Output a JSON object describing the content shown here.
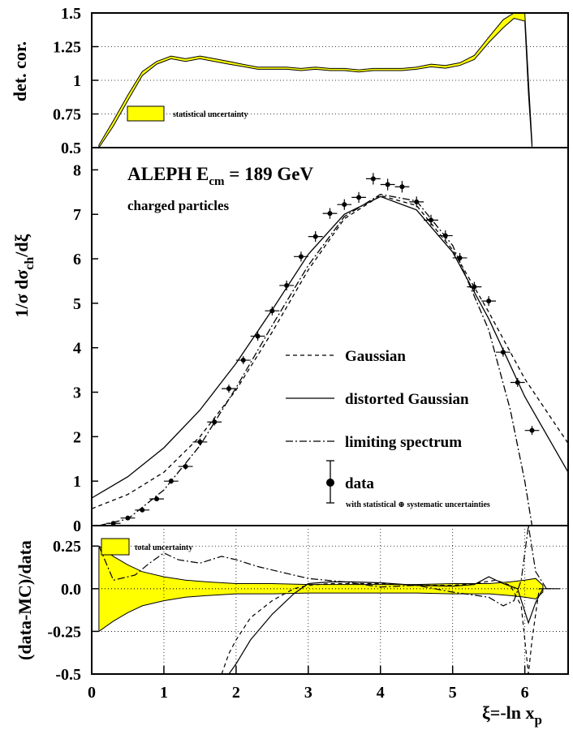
{
  "chart_data": [
    {
      "type": "line",
      "ylabel": "det. cor.",
      "xlim": [
        0,
        6.6
      ],
      "ylim": [
        0.5,
        1.5
      ],
      "yticks": [
        "0.5",
        "0.75",
        "1",
        "1.25",
        "1.5"
      ],
      "legend_label": "statistical uncertainty",
      "band_color": "#ffff00",
      "series": [
        {
          "x": [
            0.1,
            0.3,
            0.5,
            0.7,
            0.9,
            1.1,
            1.3,
            1.5,
            1.7,
            1.9,
            2.1,
            2.3,
            2.5,
            2.7,
            2.9,
            3.1,
            3.3,
            3.5,
            3.7,
            3.9,
            4.1,
            4.3,
            4.5,
            4.7,
            4.9,
            5.1,
            5.3,
            5.5,
            5.7,
            5.85,
            6.0,
            6.05,
            6.1
          ],
          "values": [
            0.5,
            0.68,
            0.87,
            1.05,
            1.13,
            1.17,
            1.15,
            1.17,
            1.15,
            1.13,
            1.11,
            1.09,
            1.09,
            1.09,
            1.08,
            1.09,
            1.08,
            1.08,
            1.07,
            1.08,
            1.08,
            1.08,
            1.09,
            1.11,
            1.1,
            1.12,
            1.17,
            1.3,
            1.42,
            1.5,
            1.5,
            0.95,
            0.5
          ],
          "err": [
            0.02,
            0.02,
            0.02,
            0.015,
            0.01,
            0.01,
            0.01,
            0.01,
            0.01,
            0.01,
            0.008,
            0.008,
            0.008,
            0.008,
            0.008,
            0.008,
            0.008,
            0.008,
            0.008,
            0.008,
            0.008,
            0.008,
            0.008,
            0.01,
            0.01,
            0.01,
            0.015,
            0.02,
            0.03,
            0.04,
            0.06,
            0.05,
            0.04
          ]
        }
      ]
    },
    {
      "type": "line",
      "title": "ALEPH  E",
      "title_sub": "cm",
      "title_suffix": " = 189 GeV",
      "subtitle": "charged particles",
      "ylabel_parts": [
        "1/σ dσ",
        "ch",
        "/dξ"
      ],
      "xlim": [
        0,
        6.6
      ],
      "ylim": [
        0,
        8.5
      ],
      "yticks": [
        "0",
        "1",
        "2",
        "3",
        "4",
        "5",
        "6",
        "7",
        "8"
      ],
      "series": [
        {
          "name": "Gaussian",
          "style": "dashed",
          "x": [
            0,
            0.5,
            1,
            1.5,
            2,
            2.5,
            3,
            3.5,
            4,
            4.5,
            5,
            5.5,
            6,
            6.6
          ],
          "values": [
            0.38,
            0.7,
            1.2,
            2.0,
            3.05,
            4.35,
            5.75,
            6.9,
            7.42,
            7.2,
            6.2,
            4.8,
            3.3,
            1.85
          ]
        },
        {
          "name": "distorted Gaussian",
          "style": "solid",
          "x": [
            0,
            0.5,
            1,
            1.5,
            2,
            2.5,
            3,
            3.5,
            4,
            4.5,
            5,
            5.5,
            6,
            6.6
          ],
          "values": [
            0.62,
            1.1,
            1.75,
            2.6,
            3.65,
            4.85,
            6.1,
            7.0,
            7.4,
            7.1,
            6.15,
            4.65,
            2.9,
            1.2
          ]
        },
        {
          "name": "limiting spectrum",
          "style": "dashdot",
          "x": [
            0.1,
            0.5,
            1,
            1.5,
            2,
            2.5,
            3,
            3.5,
            4,
            4.5,
            5,
            5.5,
            5.8,
            6.0,
            6.1
          ],
          "values": [
            0.0,
            0.15,
            0.8,
            1.8,
            3.1,
            4.5,
            5.85,
            6.95,
            7.45,
            7.3,
            6.3,
            4.4,
            2.6,
            1.0,
            0.0
          ]
        },
        {
          "name": "data",
          "style": "points",
          "x": [
            0.3,
            0.5,
            0.7,
            0.9,
            1.1,
            1.3,
            1.5,
            1.7,
            1.9,
            2.1,
            2.3,
            2.5,
            2.7,
            2.9,
            3.1,
            3.3,
            3.5,
            3.7,
            3.9,
            4.1,
            4.3,
            4.5,
            4.7,
            4.9,
            5.1,
            5.3,
            5.5,
            5.7,
            5.9,
            6.1
          ],
          "values": [
            0.05,
            0.17,
            0.35,
            0.6,
            1.0,
            1.33,
            1.88,
            2.33,
            3.08,
            3.72,
            4.26,
            4.83,
            5.4,
            6.05,
            6.5,
            7.02,
            7.22,
            7.38,
            7.8,
            7.67,
            7.62,
            7.28,
            6.87,
            6.52,
            6.02,
            5.37,
            5.05,
            3.9,
            3.22,
            2.14
          ],
          "err": [
            0.02,
            0.03,
            0.04,
            0.05,
            0.06,
            0.07,
            0.08,
            0.08,
            0.09,
            0.09,
            0.1,
            0.1,
            0.11,
            0.11,
            0.12,
            0.12,
            0.12,
            0.12,
            0.13,
            0.13,
            0.13,
            0.12,
            0.12,
            0.12,
            0.11,
            0.11,
            0.11,
            0.1,
            0.1,
            0.1
          ]
        }
      ],
      "legend": {
        "gaussian": "Gaussian",
        "distorted": "distorted Gaussian",
        "limiting": "limiting spectrum",
        "data": "data",
        "data_note": "with statistical ⊕ systematic uncertainties"
      }
    },
    {
      "type": "area",
      "ylabel": "(data-MC)/data",
      "xlabel_parts": [
        "ξ=-ln x",
        "p"
      ],
      "xlim": [
        0,
        6.6
      ],
      "ylim": [
        -0.5,
        0.37
      ],
      "yticks": [
        "-0.5",
        "-0.25",
        "0.0",
        "0.25"
      ],
      "xticks": [
        "0",
        "1",
        "2",
        "3",
        "4",
        "5",
        "6"
      ],
      "legend_label": "total uncertainty",
      "band_color": "#ffff00",
      "band": {
        "x": [
          0.1,
          0.3,
          0.5,
          0.7,
          1.0,
          1.3,
          1.6,
          2.0,
          2.5,
          3.0,
          3.5,
          4.0,
          4.5,
          5.0,
          5.5,
          5.8,
          6.0,
          6.15,
          6.25
        ],
        "upper": [
          0.25,
          0.19,
          0.14,
          0.1,
          0.07,
          0.05,
          0.04,
          0.03,
          0.03,
          0.025,
          0.025,
          0.025,
          0.025,
          0.03,
          0.03,
          0.04,
          0.05,
          0.06,
          0.02
        ],
        "lower": [
          -0.25,
          -0.19,
          -0.14,
          -0.1,
          -0.07,
          -0.05,
          -0.04,
          -0.03,
          -0.03,
          -0.025,
          -0.025,
          -0.025,
          -0.025,
          -0.03,
          -0.03,
          -0.04,
          -0.05,
          -0.06,
          -0.02
        ]
      },
      "series": [
        {
          "name": "Gaussian",
          "style": "dashed",
          "x": [
            1.8,
            1.9,
            2.0,
            2.2,
            2.5,
            2.8,
            3.0,
            3.3,
            3.6,
            4.0,
            4.5,
            5.0,
            5.3,
            5.6,
            5.8,
            5.95,
            6.05,
            6.1,
            6.2,
            6.4
          ],
          "values": [
            -0.5,
            -0.38,
            -0.3,
            -0.17,
            -0.07,
            0.0,
            0.02,
            0.03,
            0.03,
            0.03,
            0.02,
            0.02,
            0.03,
            0.05,
            0.02,
            -0.1,
            -0.5,
            -0.3,
            0.0,
            0.0
          ]
        },
        {
          "name": "distorted Gaussian",
          "style": "solid",
          "x": [
            1.9,
            2.0,
            2.2,
            2.5,
            2.8,
            3.0,
            3.3,
            3.6,
            4.0,
            4.5,
            5.0,
            5.3,
            5.5,
            5.7,
            5.9,
            6.05,
            6.15,
            6.25,
            6.4
          ],
          "values": [
            -0.5,
            -0.44,
            -0.3,
            -0.15,
            -0.03,
            0.03,
            0.04,
            0.04,
            0.035,
            0.02,
            0.015,
            0.025,
            0.07,
            0.03,
            0.0,
            -0.2,
            -0.08,
            0.0,
            0.0
          ]
        },
        {
          "name": "limiting spectrum",
          "style": "dashdot",
          "x": [
            0.1,
            0.3,
            0.6,
            0.8,
            1.0,
            1.2,
            1.5,
            1.8,
            2.0,
            2.3,
            2.6,
            3.0,
            3.5,
            4.0,
            4.5,
            5.0,
            5.5,
            5.7,
            5.85,
            5.95,
            6.05,
            6.15,
            6.3,
            6.5
          ],
          "values": [
            0.25,
            0.05,
            0.08,
            0.15,
            0.21,
            0.17,
            0.15,
            0.19,
            0.17,
            0.13,
            0.1,
            0.06,
            0.04,
            0.01,
            0.02,
            -0.02,
            -0.05,
            -0.1,
            -0.07,
            0.05,
            0.37,
            0.1,
            0.0,
            0.0
          ]
        }
      ]
    }
  ]
}
